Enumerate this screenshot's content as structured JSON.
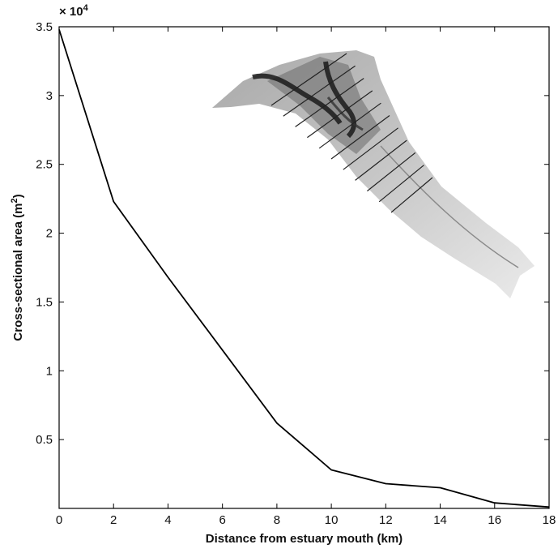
{
  "chart_data": {
    "type": "line",
    "xlabel": "Distance from estuary mouth (km)",
    "ylabel_text": "Cross-sectional area (m",
    "ylabel_sup": "2",
    "ylabel_close": ")",
    "y_multiplier_base": "× 10",
    "y_multiplier_exp": "4",
    "xlim": [
      0,
      18
    ],
    "ylim": [
      0,
      35000
    ],
    "xticks": [
      0,
      2,
      4,
      6,
      8,
      10,
      12,
      14,
      16,
      18
    ],
    "xtick_labels": [
      "0",
      "2",
      "4",
      "6",
      "8",
      "10",
      "12",
      "14",
      "16",
      "18"
    ],
    "yticks": [
      5000,
      10000,
      15000,
      20000,
      25000,
      30000,
      35000
    ],
    "ytick_labels": [
      "0.5",
      "1",
      "1.5",
      "2",
      "2.5",
      "3",
      "3.5"
    ],
    "grid": false,
    "series": [
      {
        "x": [
          0,
          2,
          4,
          6,
          8,
          10,
          12,
          14,
          16,
          18
        ],
        "y": [
          34800,
          22300,
          16800,
          11500,
          6200,
          2800,
          1800,
          1500,
          400,
          100
        ]
      }
    ],
    "inset": "grayscale bathymetry map of the estuary with parallel cross-section transect lines"
  }
}
